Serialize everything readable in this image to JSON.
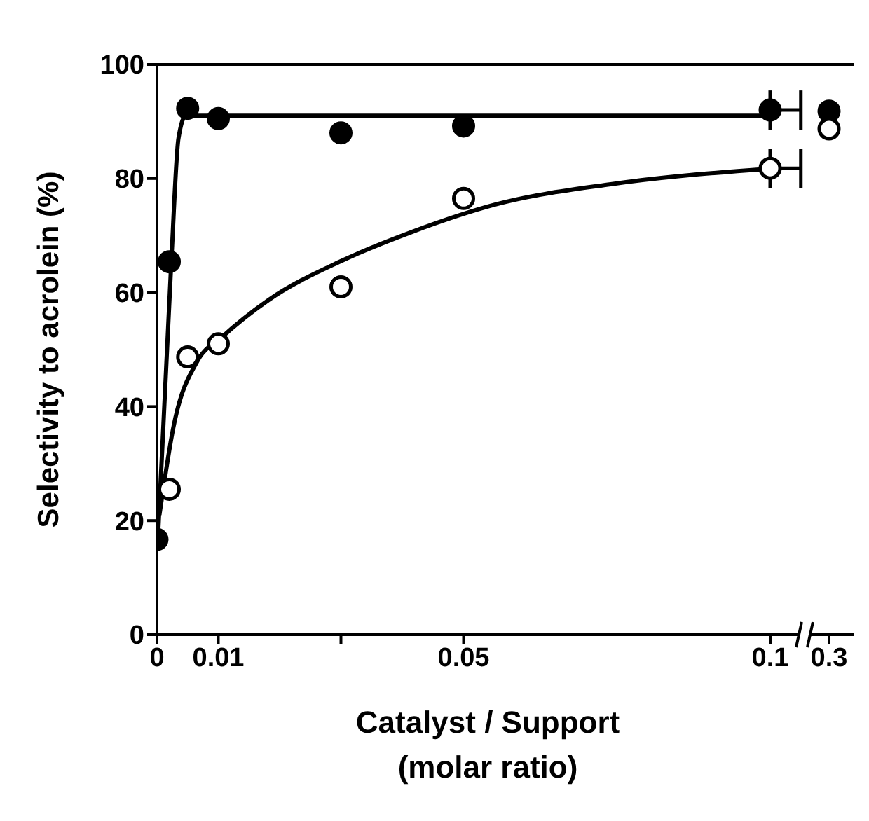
{
  "chart_data": [
    {
      "type": "scatter",
      "xlabel": "Catalyst / Support (molar ratio)",
      "ylabel": "Selectivity  to  acrolein (%)",
      "xlim": [
        0,
        0.1056
      ],
      "xticks": [
        0,
        0.01,
        {
          "value": 0.03,
          "label": null
        },
        0.05,
        0.1
      ],
      "ylim": [
        0,
        100
      ],
      "yticks": [
        0,
        20,
        40,
        60,
        80,
        100
      ],
      "marker": "circle",
      "series": [
        {
          "color": "#000000",
          "x": [
            0,
            0.002,
            0.005,
            0.01,
            0.03,
            0.05,
            0.1
          ],
          "values": [
            16.7,
            65.4,
            92.3,
            90.5,
            88.0,
            89.2,
            92.0
          ],
          "xerrors": [
            null,
            null,
            null,
            null,
            null,
            null,
            [
              0.1,
              0.105
            ]
          ]
        },
        {
          "color": "#000000",
          "x": [
            0.002,
            0.005,
            0.01,
            0.03,
            0.05,
            0.1
          ],
          "values": [
            25.5,
            48.7,
            51.0,
            61.0,
            76.5,
            81.8
          ],
          "xerrors": [
            null,
            null,
            null,
            null,
            null,
            [
              0.1,
              0.105
            ]
          ]
        },
        {
          "type": "line",
          "color": "#000000",
          "marker": "none",
          "x": [
            0.0002,
            0.0023,
            0.0035,
            0.0047,
            0.1
          ],
          "values": [
            18,
            64.6,
            87,
            91,
            91
          ]
        },
        {
          "type": "line",
          "color": "#000000",
          "marker": "none",
          "x": [
            0.0004,
            0.0027,
            0.0066,
            0.0104,
            0.0182,
            0.0302,
            0.0415,
            0.0554,
            0.074,
            0.0996
          ],
          "values": [
            21,
            36.5,
            48,
            52,
            58.7,
            65.6,
            70.6,
            75.5,
            79,
            81.7
          ]
        }
      ]
    },
    {
      "type": "scatter",
      "categories": [
        "0.3"
      ],
      "ylim": [
        0,
        100
      ],
      "tick_labels": "x",
      "marker": "circle",
      "series": [
        {
          "color": "#000000",
          "values": [
            91.8
          ]
        },
        {
          "color": "#000000",
          "values": [
            88.7
          ]
        }
      ]
    }
  ]
}
